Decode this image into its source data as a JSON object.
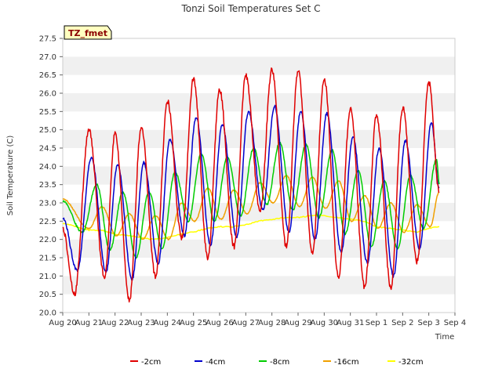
{
  "chart_data": {
    "type": "line",
    "title": "Tonzi Soil Temperatures Set C",
    "xlabel": "Time",
    "ylabel": "Soil Temperature (C)",
    "badge": "TZ_fmet",
    "ylim": [
      20.0,
      27.5
    ],
    "xlim": [
      0,
      15
    ],
    "y_ticks": [
      "20.0",
      "20.5",
      "21.0",
      "21.5",
      "22.0",
      "22.5",
      "23.0",
      "23.5",
      "24.0",
      "24.5",
      "25.0",
      "25.5",
      "26.0",
      "26.5",
      "27.0",
      "27.5"
    ],
    "x_ticks": [
      "Aug 20",
      "Aug 21",
      "Aug 22",
      "Aug 23",
      "Aug 24",
      "Aug 25",
      "Aug 26",
      "Aug 27",
      "Aug 28",
      "Aug 29",
      "Aug 30",
      "Aug 31",
      "Sep 1",
      "Sep 2",
      "Sep 3",
      "Sep 4"
    ],
    "grid": "horizontal bands",
    "legend_position": "bottom",
    "series": [
      {
        "name": "-2cm",
        "color": "#e00000",
        "min_times": [
          0.45,
          1.6,
          2.55,
          3.55,
          4.55,
          5.55,
          6.55,
          7.55,
          8.55,
          9.55,
          10.55,
          11.55,
          12.55,
          13.55
        ],
        "min_values": [
          20.5,
          20.95,
          20.35,
          21.0,
          22.05,
          21.5,
          21.8,
          22.8,
          21.8,
          21.65,
          21.0,
          20.7,
          20.7,
          21.4
        ],
        "peak_times": [
          1.0,
          2.0,
          3.0,
          4.0,
          5.0,
          6.0,
          7.0,
          8.0,
          9.0,
          10.0,
          11.0,
          12.0,
          13.0,
          14.0
        ],
        "peak_values": [
          25.0,
          24.9,
          25.05,
          25.8,
          26.4,
          26.1,
          26.5,
          26.65,
          26.6,
          26.4,
          25.6,
          25.4,
          25.6,
          26.3
        ],
        "start": 22.3,
        "end": 23.3,
        "end_t": 14.4
      },
      {
        "name": "-4cm",
        "color": "#0000cc",
        "min_times": [
          0.55,
          1.65,
          2.65,
          3.65,
          4.65,
          5.65,
          6.65,
          7.65,
          8.65,
          9.65,
          10.65,
          11.65,
          12.65,
          13.65
        ],
        "min_values": [
          21.15,
          21.1,
          20.9,
          21.35,
          22.1,
          21.85,
          22.05,
          22.8,
          22.2,
          22.0,
          21.65,
          21.35,
          21.0,
          21.75
        ],
        "peak_times": [
          1.1,
          2.1,
          3.1,
          4.1,
          5.1,
          6.1,
          7.1,
          8.1,
          9.1,
          10.1,
          11.1,
          12.1,
          13.1,
          14.1
        ],
        "peak_values": [
          24.25,
          24.05,
          24.1,
          24.75,
          25.35,
          25.15,
          25.5,
          25.65,
          25.5,
          25.45,
          24.8,
          24.5,
          24.7,
          25.2
        ],
        "start": 22.6,
        "end": 23.4,
        "end_t": 14.4
      },
      {
        "name": "-8cm",
        "color": "#00cc00",
        "min_times": [
          0.75,
          1.8,
          2.8,
          3.8,
          4.8,
          5.8,
          6.8,
          7.8,
          8.8,
          9.8,
          10.8,
          11.8,
          12.8,
          13.8
        ],
        "min_values": [
          22.2,
          21.7,
          21.5,
          21.75,
          22.5,
          22.5,
          22.65,
          22.95,
          22.8,
          22.6,
          22.15,
          21.8,
          21.75,
          22.3
        ],
        "peak_times": [
          1.3,
          2.3,
          3.3,
          4.3,
          5.3,
          6.3,
          7.3,
          8.3,
          9.3,
          10.3,
          11.3,
          12.3,
          13.3,
          14.3
        ],
        "peak_values": [
          23.5,
          23.3,
          23.3,
          23.85,
          24.35,
          24.25,
          24.5,
          24.65,
          24.6,
          24.45,
          23.9,
          23.6,
          23.75,
          24.2
        ],
        "start": 23.05,
        "end": 23.5,
        "end_t": 14.4
      },
      {
        "name": "-16cm",
        "color": "#f0a000",
        "min_times": [
          1.0,
          2.05,
          3.05,
          4.05,
          5.05,
          6.05,
          7.05,
          8.05,
          9.05,
          10.05,
          11.05,
          12.05,
          13.05,
          14.05
        ],
        "min_values": [
          22.3,
          22.1,
          22.0,
          22.0,
          22.5,
          22.55,
          22.7,
          23.0,
          22.9,
          22.85,
          22.5,
          22.3,
          22.2,
          22.35
        ],
        "peak_times": [
          1.5,
          2.55,
          3.55,
          4.55,
          5.55,
          6.55,
          7.55,
          8.55,
          9.55,
          10.55,
          11.55,
          12.55,
          13.55
        ],
        "peak_values": [
          22.9,
          22.7,
          22.65,
          23.0,
          23.4,
          23.35,
          23.55,
          23.75,
          23.7,
          23.6,
          23.2,
          23.0,
          22.95
        ],
        "start": 23.1,
        "end": 23.3,
        "end_t": 14.4
      },
      {
        "name": "-32cm",
        "color": "#ffff00",
        "points": [
          [
            0.0,
            22.45
          ],
          [
            0.5,
            22.35
          ],
          [
            1.0,
            22.25
          ],
          [
            1.5,
            22.25
          ],
          [
            2.0,
            22.15
          ],
          [
            2.5,
            22.1
          ],
          [
            3.0,
            22.05
          ],
          [
            3.5,
            22.0
          ],
          [
            4.0,
            22.05
          ],
          [
            4.5,
            22.15
          ],
          [
            5.0,
            22.2
          ],
          [
            5.5,
            22.3
          ],
          [
            6.0,
            22.35
          ],
          [
            6.5,
            22.35
          ],
          [
            7.0,
            22.4
          ],
          [
            7.5,
            22.5
          ],
          [
            8.0,
            22.55
          ],
          [
            8.5,
            22.6
          ],
          [
            9.0,
            22.6
          ],
          [
            9.5,
            22.65
          ],
          [
            10.0,
            22.65
          ],
          [
            10.5,
            22.6
          ],
          [
            11.0,
            22.55
          ],
          [
            11.5,
            22.5
          ],
          [
            12.0,
            22.35
          ],
          [
            12.5,
            22.3
          ],
          [
            13.0,
            22.25
          ],
          [
            13.5,
            22.2
          ],
          [
            14.0,
            22.3
          ],
          [
            14.4,
            22.35
          ]
        ]
      }
    ]
  }
}
